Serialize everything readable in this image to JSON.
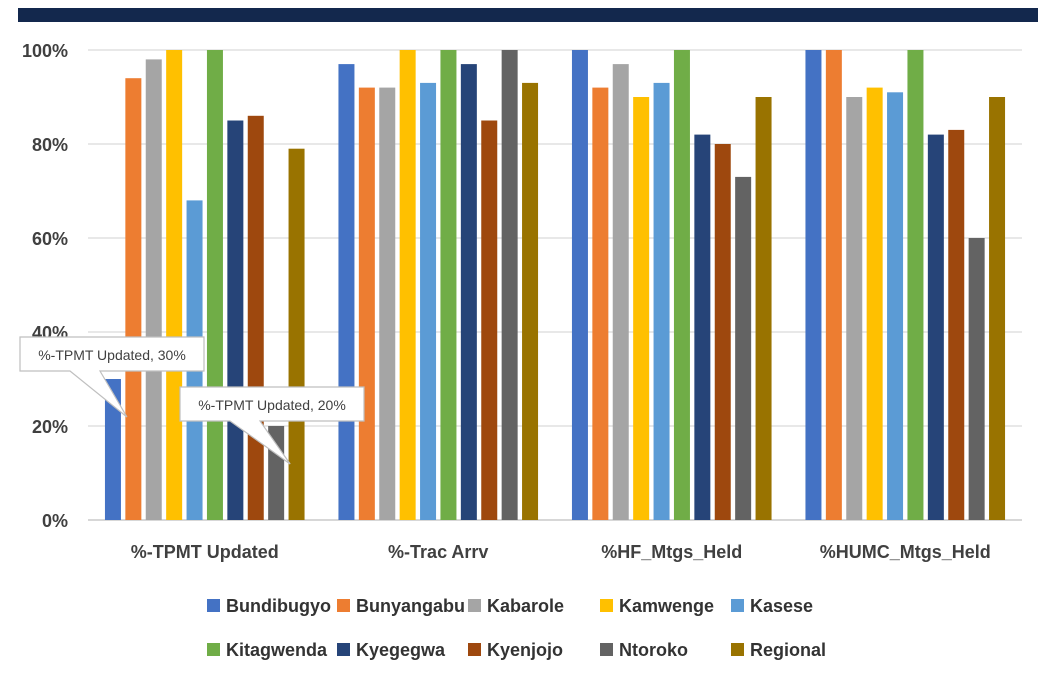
{
  "chart_data": {
    "type": "bar",
    "categories": [
      "%-TPMT Updated",
      "%-Trac Arrv",
      "%HF_Mtgs_Held",
      "%HUMC_Mtgs_Held"
    ],
    "series": [
      {
        "name": "Bundibugyo",
        "color": "#4472c4",
        "values": [
          30,
          97,
          100,
          100
        ]
      },
      {
        "name": "Bunyangabu",
        "color": "#ed7d31",
        "values": [
          94,
          92,
          92,
          100
        ]
      },
      {
        "name": "Kabarole",
        "color": "#a5a5a5",
        "values": [
          98,
          92,
          97,
          90
        ]
      },
      {
        "name": "Kamwenge",
        "color": "#ffc000",
        "values": [
          100,
          100,
          90,
          92
        ]
      },
      {
        "name": "Kasese",
        "color": "#5b9bd5",
        "values": [
          68,
          93,
          93,
          91
        ]
      },
      {
        "name": "Kitagwenda",
        "color": "#70ad47",
        "values": [
          100,
          100,
          100,
          100
        ]
      },
      {
        "name": "Kyegegwa",
        "color": "#264478",
        "values": [
          85,
          97,
          82,
          82
        ]
      },
      {
        "name": "Kyenjojo",
        "color": "#9e480e",
        "values": [
          86,
          85,
          80,
          83
        ]
      },
      {
        "name": "Ntoroko",
        "color": "#636363",
        "values": [
          20,
          100,
          73,
          60
        ]
      },
      {
        "name": "Regional",
        "color": "#997300",
        "values": [
          79,
          93,
          90,
          90
        ]
      }
    ],
    "yticks": [
      "0%",
      "20%",
      "40%",
      "60%",
      "80%",
      "100%"
    ],
    "ylim": [
      0,
      100
    ],
    "grid": true,
    "legend_position": "bottom",
    "annotations": [
      {
        "text": "%-TPMT Updated, 30%",
        "category": 0,
        "series": 0
      },
      {
        "text": "%-TPMT Updated, 20%",
        "category": 0,
        "series": 8
      }
    ]
  }
}
